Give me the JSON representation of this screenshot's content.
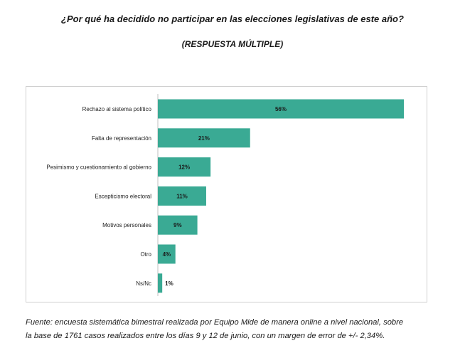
{
  "header": {
    "title": "¿Por qué ha decidido no participar en las elecciones legislativas de este año?",
    "subtitle": "(RESPUESTA MÚLTIPLE)"
  },
  "chart_data": {
    "type": "bar",
    "orientation": "horizontal",
    "categories": [
      "Rechazo al sistema político",
      "Falta de representación",
      "Pesimismo y cuestionamiento al gobierno",
      "Escepticismo electoral",
      "Motivos personales",
      "Otro",
      "Ns/Nc"
    ],
    "values": [
      56,
      21,
      12,
      11,
      9,
      4,
      1
    ],
    "value_labels": [
      "56%",
      "21%",
      "12%",
      "11%",
      "9%",
      "4%",
      "1%"
    ],
    "xlim": [
      0,
      56
    ],
    "bar_color": "#3aaa94",
    "grid": false,
    "legend": "none"
  },
  "footnote": {
    "line1": "Fuente: encuesta sistemática bimestral realizada por Equipo Mide de manera online a nivel nacional, sobre",
    "line2": "la base de 1761 casos realizados entre los días 9 y 12 de junio, con un margen de error de +/- 2,34%."
  }
}
